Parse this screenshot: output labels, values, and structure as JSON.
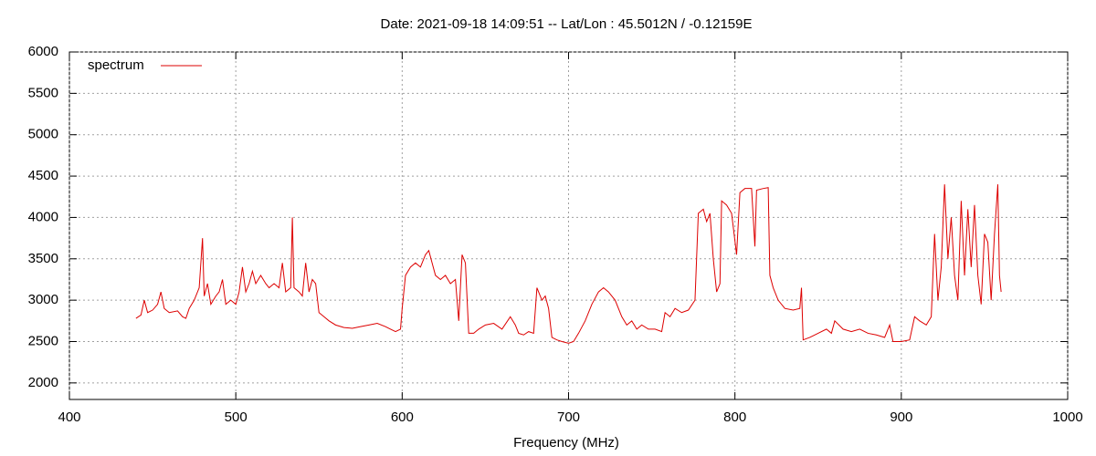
{
  "chart_data": {
    "type": "line",
    "title": "Date: 2021-09-18 14:09:51  --  Lat/Lon : 45.5012N / -0.12159E",
    "x_label": "Frequency (MHz)",
    "legend": "top-left",
    "grid": true,
    "xlim": [
      400,
      1000
    ],
    "xticks": [
      400,
      500,
      600,
      700,
      800,
      900,
      1000
    ],
    "ylim": [
      1800,
      6000
    ],
    "yticks": [
      2000,
      2500,
      3000,
      3500,
      4000,
      4500,
      5000,
      5500,
      6000
    ],
    "x": [
      440,
      443,
      445,
      447,
      450,
      453,
      455,
      457,
      460,
      465,
      468,
      470,
      472,
      475,
      478,
      480,
      481,
      483,
      485,
      488,
      490,
      492,
      494,
      497,
      500,
      502,
      504,
      506,
      508,
      510,
      512,
      515,
      518,
      520,
      523,
      526,
      528,
      530,
      533,
      534,
      535,
      538,
      540,
      542,
      544,
      546,
      548,
      550,
      553,
      556,
      560,
      565,
      570,
      575,
      580,
      585,
      590,
      593,
      596,
      599,
      600,
      602,
      605,
      608,
      611,
      614,
      616,
      618,
      620,
      623,
      626,
      629,
      632,
      634,
      636,
      638,
      640,
      643,
      646,
      650,
      655,
      660,
      665,
      668,
      670,
      673,
      676,
      679,
      681,
      684,
      686,
      688,
      690,
      693,
      696,
      700,
      703,
      706,
      710,
      714,
      718,
      721,
      724,
      728,
      732,
      735,
      738,
      741,
      744,
      748,
      752,
      756,
      758,
      761,
      764,
      768,
      772,
      776,
      778,
      781,
      783,
      785,
      787,
      789,
      791,
      792,
      795,
      798,
      801,
      803,
      806,
      810,
      812,
      813,
      817,
      820,
      821,
      823,
      826,
      830,
      835,
      839,
      840,
      841,
      845,
      850,
      855,
      858,
      860,
      865,
      870,
      875,
      880,
      885,
      890,
      893,
      895,
      900,
      905,
      908,
      911,
      915,
      918,
      920,
      922,
      924,
      926,
      928,
      930,
      932,
      934,
      936,
      938,
      940,
      942,
      944,
      946,
      948,
      950,
      952,
      954,
      956,
      958,
      959,
      960
    ],
    "series": [
      {
        "name": "spectrum",
        "color": "#dd0000",
        "values": [
          2780,
          2820,
          3000,
          2850,
          2880,
          2950,
          3100,
          2900,
          2850,
          2870,
          2800,
          2780,
          2900,
          3000,
          3150,
          3750,
          3050,
          3200,
          2950,
          3050,
          3100,
          3250,
          2950,
          3000,
          2950,
          3100,
          3400,
          3100,
          3200,
          3350,
          3200,
          3300,
          3200,
          3150,
          3200,
          3150,
          3450,
          3100,
          3150,
          4000,
          3150,
          3100,
          3050,
          3450,
          3100,
          3250,
          3200,
          2850,
          2800,
          2750,
          2700,
          2670,
          2660,
          2680,
          2700,
          2720,
          2680,
          2650,
          2620,
          2650,
          2900,
          3300,
          3400,
          3450,
          3400,
          3550,
          3600,
          3450,
          3300,
          3250,
          3300,
          3200,
          3250,
          2750,
          3550,
          3450,
          2600,
          2600,
          2650,
          2700,
          2720,
          2650,
          2800,
          2700,
          2600,
          2580,
          2620,
          2600,
          3150,
          3000,
          3050,
          2900,
          2550,
          2520,
          2500,
          2480,
          2500,
          2600,
          2750,
          2950,
          3100,
          3150,
          3100,
          3000,
          2800,
          2700,
          2750,
          2650,
          2700,
          2650,
          2650,
          2620,
          2850,
          2800,
          2900,
          2850,
          2880,
          3000,
          4050,
          4100,
          3950,
          4050,
          3500,
          3100,
          3200,
          4200,
          4150,
          4050,
          3550,
          4300,
          4350,
          4350,
          3650,
          4330,
          4350,
          4360,
          3300,
          3150,
          3000,
          2900,
          2880,
          2900,
          3150,
          2520,
          2550,
          2600,
          2650,
          2600,
          2750,
          2650,
          2620,
          2650,
          2600,
          2580,
          2550,
          2700,
          2500,
          2500,
          2520,
          2800,
          2750,
          2700,
          2800,
          3800,
          3000,
          3400,
          4400,
          3500,
          4000,
          3300,
          3000,
          4200,
          3300,
          4100,
          3400,
          4150,
          3300,
          2950,
          3800,
          3700,
          3000,
          3800,
          4400,
          3300,
          3100
        ]
      }
    ]
  }
}
